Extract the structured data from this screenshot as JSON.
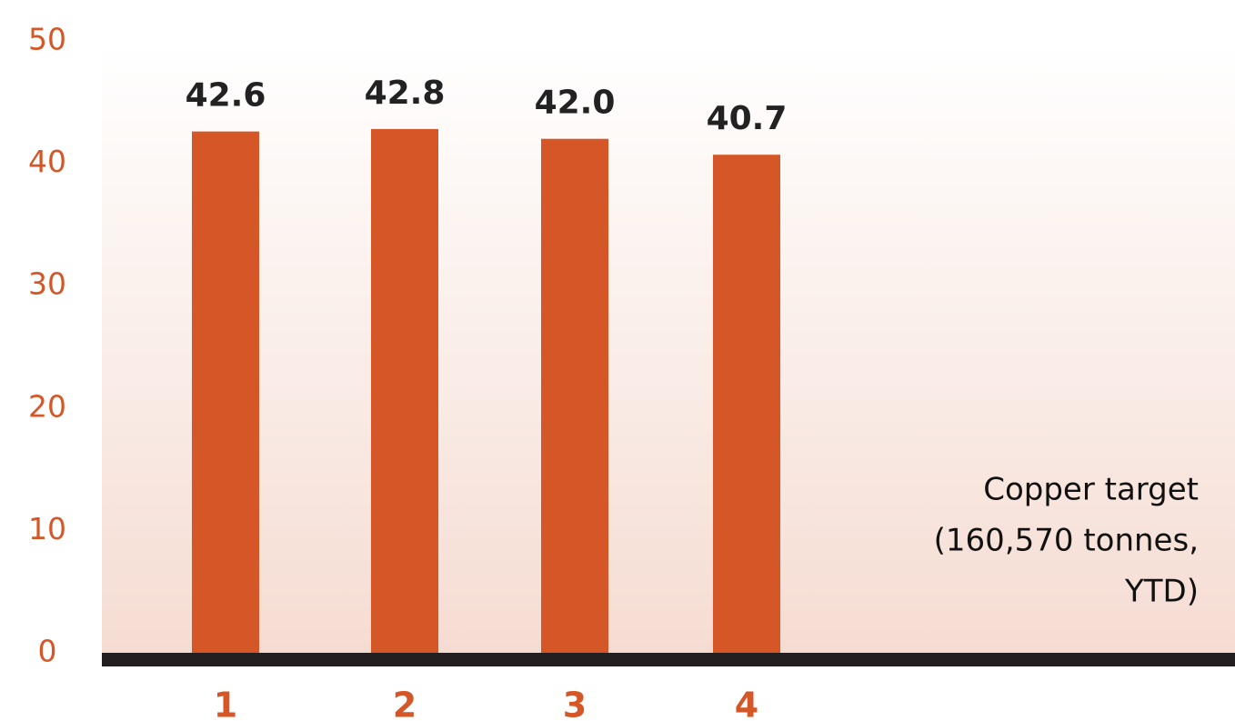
{
  "chart_data": {
    "type": "bar",
    "categories": [
      "1",
      "2",
      "3",
      "4"
    ],
    "values": [
      42.6,
      42.8,
      42.0,
      40.7
    ],
    "value_labels": [
      "42.6",
      "42.8",
      "42.0",
      "40.7"
    ],
    "color": "#d55727",
    "ylim": [
      0,
      50
    ],
    "yticks": [
      0,
      10,
      20,
      30,
      40,
      50
    ],
    "annotation": [
      "Copper target",
      "(160,570 tonnes,",
      "YTD)"
    ]
  }
}
